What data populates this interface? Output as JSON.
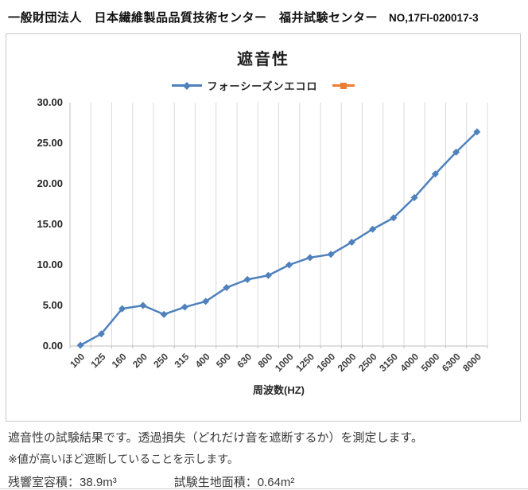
{
  "header": {
    "title": "一般財団法人　日本繊維製品品質技術センター　福井試験センター",
    "report_no": "NO,17FI-020017-3"
  },
  "chart_data": {
    "type": "line",
    "title": "遮音性",
    "xlabel": "周波数(HZ)",
    "ylabel": "",
    "categories": [
      "100",
      "125",
      "160",
      "200",
      "250",
      "315",
      "400",
      "500",
      "630",
      "800",
      "1000",
      "1250",
      "1600",
      "2000",
      "2500",
      "3150",
      "4000",
      "5000",
      "6300",
      "8000"
    ],
    "series": [
      {
        "name": "フォーシーズンエコロ",
        "color": "#4f81bd",
        "marker": "diamond",
        "values": [
          0.1,
          1.5,
          4.6,
          5.0,
          3.9,
          4.8,
          5.5,
          7.2,
          8.2,
          8.7,
          10.0,
          10.9,
          11.3,
          12.8,
          14.4,
          15.8,
          18.3,
          21.2,
          23.9,
          26.4
        ]
      },
      {
        "name": "",
        "color": "#ed7d31",
        "marker": "square",
        "values": []
      }
    ],
    "ylim": [
      0,
      30
    ],
    "ytick_step": 5,
    "ytick_format": "2-decimals",
    "grid": "vertical-only",
    "legend_position": "top",
    "colors": {
      "grid": "#d9d9d9",
      "axis": "#bfbfbf"
    }
  },
  "footer": {
    "line1": "遮音性の試験結果です。透過損失（どれだけ音を遮断するか）を測定します。",
    "line2": "※値が高いほど遮断していることを示します。",
    "volume_label": "残響室容積：",
    "volume_value": "38.9m³",
    "area_label": "試験生地面積：",
    "area_value": "0.64m²"
  }
}
